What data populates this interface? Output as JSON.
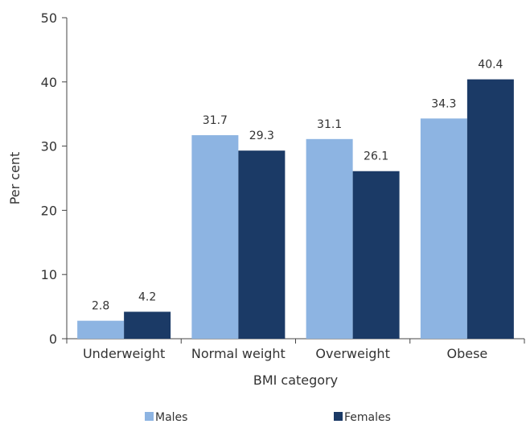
{
  "chart_data": {
    "type": "bar",
    "categories": [
      "Underweight",
      "Normal weight",
      "Overweight",
      "Obese"
    ],
    "series": [
      {
        "name": "Males",
        "values": [
          2.8,
          31.7,
          31.1,
          34.3
        ],
        "color": "#8DB4E2"
      },
      {
        "name": "Females",
        "values": [
          4.2,
          29.3,
          26.1,
          40.4
        ],
        "color": "#1B3A66"
      }
    ],
    "xlabel": "BMI category",
    "ylabel": "Per cent",
    "ylim": [
      0,
      50
    ],
    "yticks": [
      0,
      10,
      20,
      30,
      40,
      50
    ],
    "grid": false,
    "legend": "bottom"
  }
}
